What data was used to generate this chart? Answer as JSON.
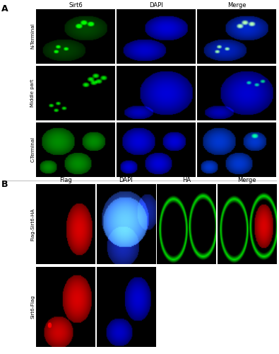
{
  "fig_width": 3.95,
  "fig_height": 5.0,
  "dpi": 100,
  "background_color": "#ffffff",
  "panel_A_label": "A",
  "panel_B_label": "B",
  "panel_A_col_labels": [
    "Sirt6",
    "DAPI",
    "Merge"
  ],
  "panel_B_col_labels": [
    "Flag",
    "DAPI",
    "HA",
    "Merge"
  ],
  "panel_A_row_labels": [
    "N-Terminal",
    "Middle part",
    "C-Terminal"
  ],
  "panel_B_row_labels": [
    "Flag-Sirt6-HA",
    "Sirt6-Flag"
  ],
  "separator_color": "#bbbbbb",
  "panel_label_fontsize": 9,
  "col_label_fontsize": 6,
  "row_label_fontsize": 5.0
}
